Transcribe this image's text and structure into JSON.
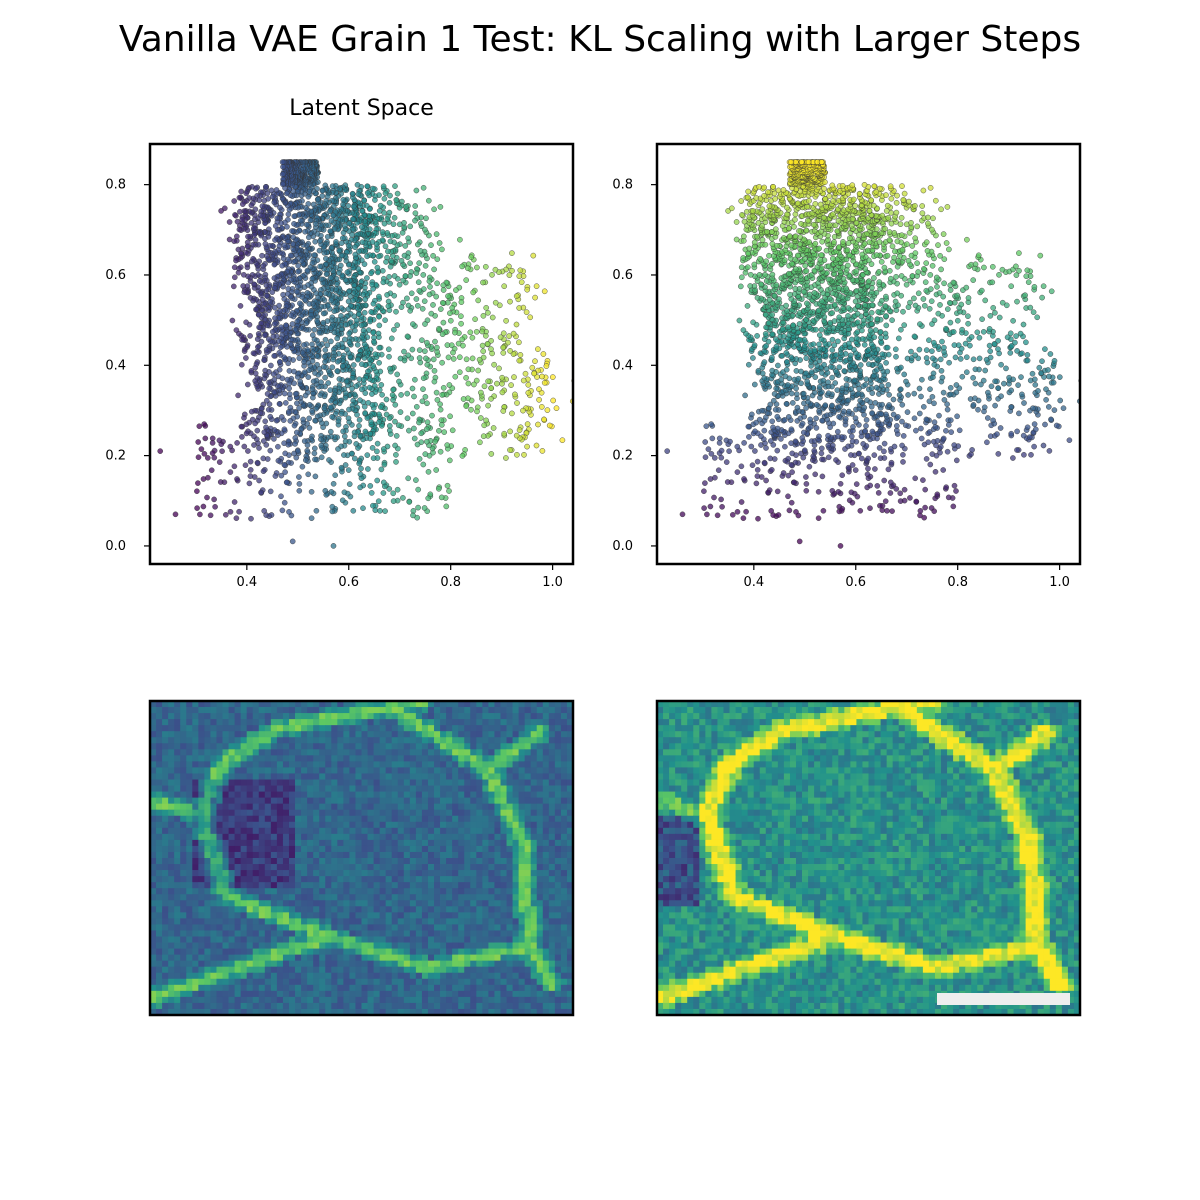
{
  "title": "Vanilla VAE Grain 1 Test: KL Scaling with Larger Steps",
  "subplot_title": "Latent Space",
  "colormap": [
    "#440154",
    "#3b528b",
    "#21918c",
    "#5ec962",
    "#fde725"
  ],
  "chart_data": [
    {
      "type": "scatter",
      "title": "Latent Space",
      "xlabel": "",
      "ylabel": "",
      "xlim": [
        0.21,
        1.04
      ],
      "ylim": [
        -0.04,
        0.89
      ],
      "xticks": [
        "0.4",
        "0.6",
        "0.8",
        "1.0"
      ],
      "yticks": [
        "0.0",
        "0.2",
        "0.4",
        "0.6",
        "0.8"
      ],
      "color_by": "x",
      "approx_points": 9000,
      "point_cloud": {
        "peak": [
          0.5,
          0.85
        ],
        "core_x_range": [
          0.38,
          0.7
        ],
        "core_y_range": [
          0.25,
          0.8
        ],
        "outlier_examples": [
          [
            0.26,
            0.07
          ],
          [
            0.49,
            0.01
          ],
          [
            0.57,
            0.0
          ],
          [
            0.23,
            0.21
          ],
          [
            0.95,
            0.22
          ],
          [
            0.99,
            0.41
          ]
        ]
      }
    },
    {
      "type": "scatter",
      "title": "",
      "xlabel": "",
      "ylabel": "",
      "xlim": [
        0.21,
        1.04
      ],
      "ylim": [
        -0.04,
        0.89
      ],
      "xticks": [
        "0.4",
        "0.6",
        "0.8",
        "1.0"
      ],
      "yticks": [
        "0.0",
        "0.2",
        "0.4",
        "0.6",
        "0.8"
      ],
      "color_by": "y",
      "approx_points": 9000,
      "point_cloud": {
        "peak": [
          0.5,
          0.85
        ],
        "core_x_range": [
          0.38,
          0.7
        ],
        "core_y_range": [
          0.25,
          0.8
        ],
        "outlier_examples": [
          [
            0.26,
            0.07
          ],
          [
            0.49,
            0.01
          ],
          [
            0.57,
            0.0
          ],
          [
            0.23,
            0.21
          ],
          [
            0.95,
            0.22
          ],
          [
            0.99,
            0.41
          ]
        ]
      }
    },
    {
      "type": "heatmap",
      "title": "",
      "description_colormap": "viridis",
      "axes_visible": false,
      "tone": "dark"
    },
    {
      "type": "heatmap",
      "title": "",
      "description_colormap": "viridis",
      "axes_visible": false,
      "tone": "bright",
      "scale_bar": true
    }
  ]
}
